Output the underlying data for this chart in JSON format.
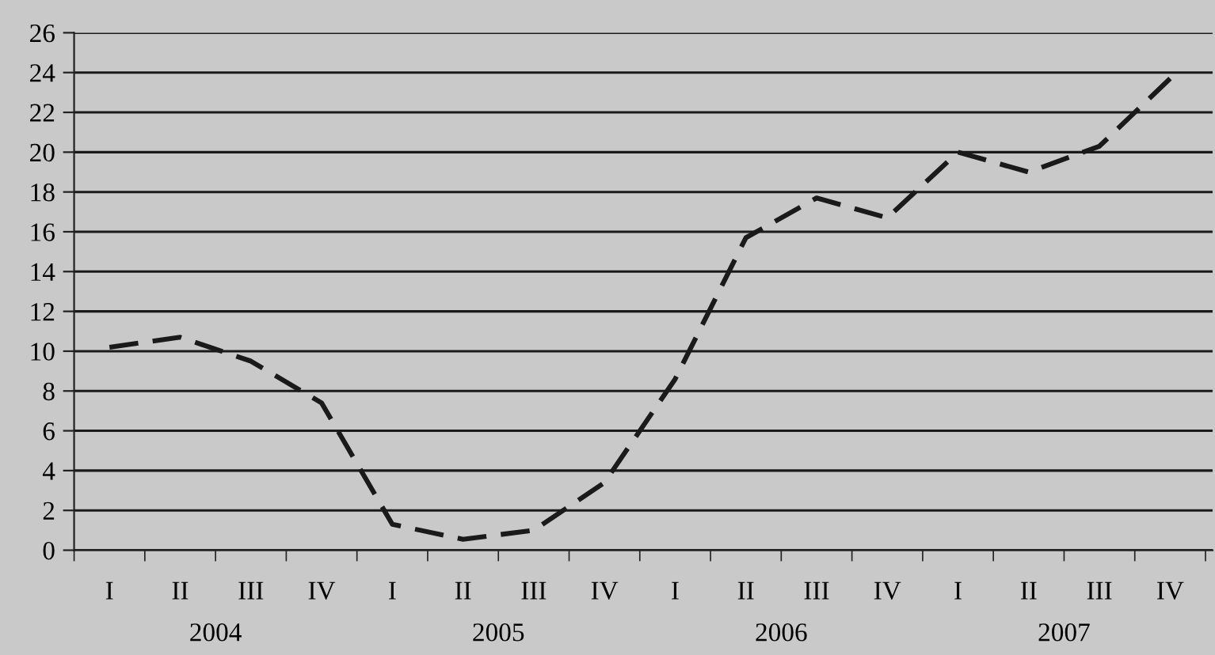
{
  "chart_data": {
    "type": "line",
    "categories": [
      "I",
      "II",
      "III",
      "IV",
      "I",
      "II",
      "III",
      "IV",
      "I",
      "II",
      "III",
      "IV",
      "I",
      "II",
      "III",
      "IV"
    ],
    "series": [
      {
        "color": "#1a1a1a",
        "values": [
          10.2,
          10.7,
          9.5,
          7.4,
          1.3,
          0.55,
          1.0,
          3.4,
          8.6,
          15.7,
          17.7,
          16.7,
          20.0,
          19.0,
          20.3,
          23.7
        ]
      }
    ],
    "ylim": [
      0,
      26
    ],
    "yticks": [
      0,
      2,
      4,
      6,
      8,
      10,
      12,
      14,
      16,
      18,
      20,
      22,
      24,
      26
    ],
    "grid": "y",
    "line_style": "dashed",
    "marker": "none",
    "legend": false,
    "annotations": [
      "2004",
      "2005",
      "2006",
      "2007"
    ]
  }
}
